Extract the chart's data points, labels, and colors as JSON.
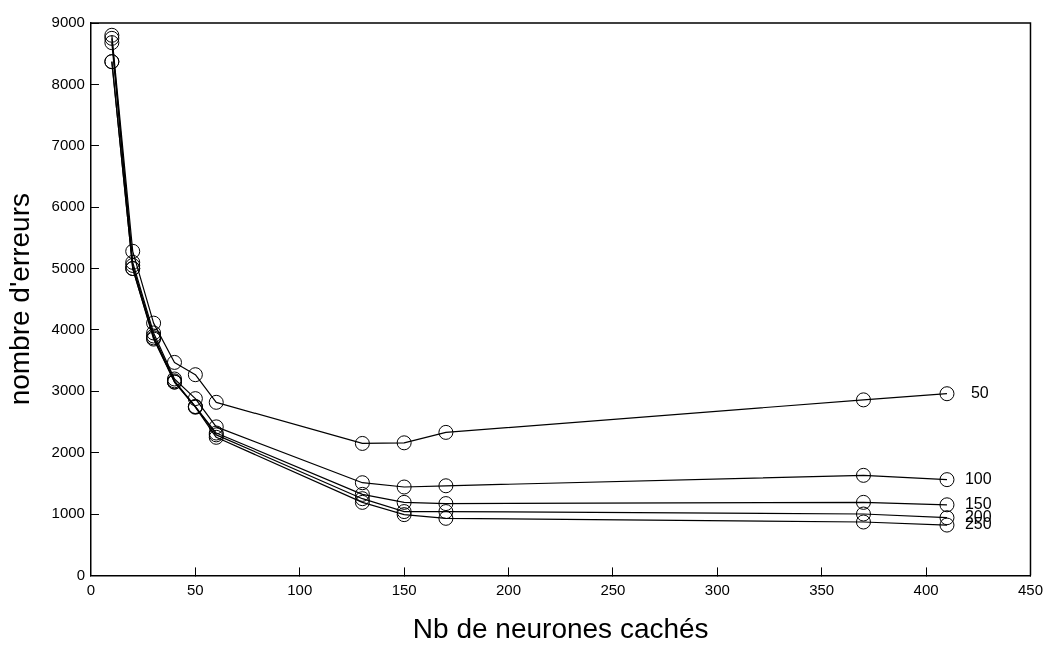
{
  "chart_data": {
    "type": "line",
    "xlabel": "Nb de neurones cachés",
    "ylabel": "nombre d'erreurs",
    "x": [
      10,
      20,
      30,
      40,
      50,
      60,
      130,
      150,
      170,
      370,
      410
    ],
    "series": [
      {
        "name": "50",
        "color": "#000000",
        "values": [
          8800,
          5280,
          4110,
          3470,
          3270,
          2820,
          2150,
          2160,
          2330,
          2860,
          2960
        ]
      },
      {
        "name": "100",
        "color": "#000000",
        "values": [
          8750,
          5100,
          3950,
          3200,
          2880,
          2420,
          1510,
          1440,
          1460,
          1630,
          1560
        ]
      },
      {
        "name": "150",
        "color": "#000000",
        "values": [
          8680,
          5050,
          3900,
          3170,
          2750,
          2320,
          1320,
          1190,
          1170,
          1190,
          1150
        ]
      },
      {
        "name": "200",
        "color": "#000000",
        "values": [
          8370,
          5000,
          3870,
          3150,
          2750,
          2290,
          1250,
          1040,
          1040,
          1000,
          940
        ]
      },
      {
        "name": "250",
        "color": "#000000",
        "values": [
          8370,
          5000,
          3850,
          3150,
          2740,
          2250,
          1190,
          990,
          930,
          870,
          820
        ]
      }
    ],
    "xlim": [
      0,
      450
    ],
    "xticks": [
      0,
      50,
      100,
      150,
      200,
      250,
      300,
      350,
      400,
      450
    ],
    "ylim": [
      0,
      9000
    ],
    "yticks": [
      0,
      1000,
      2000,
      3000,
      4000,
      5000,
      6000,
      7000,
      8000,
      9000
    ],
    "grid": false,
    "legend": false,
    "marker": "circle",
    "line_style": "solid"
  }
}
